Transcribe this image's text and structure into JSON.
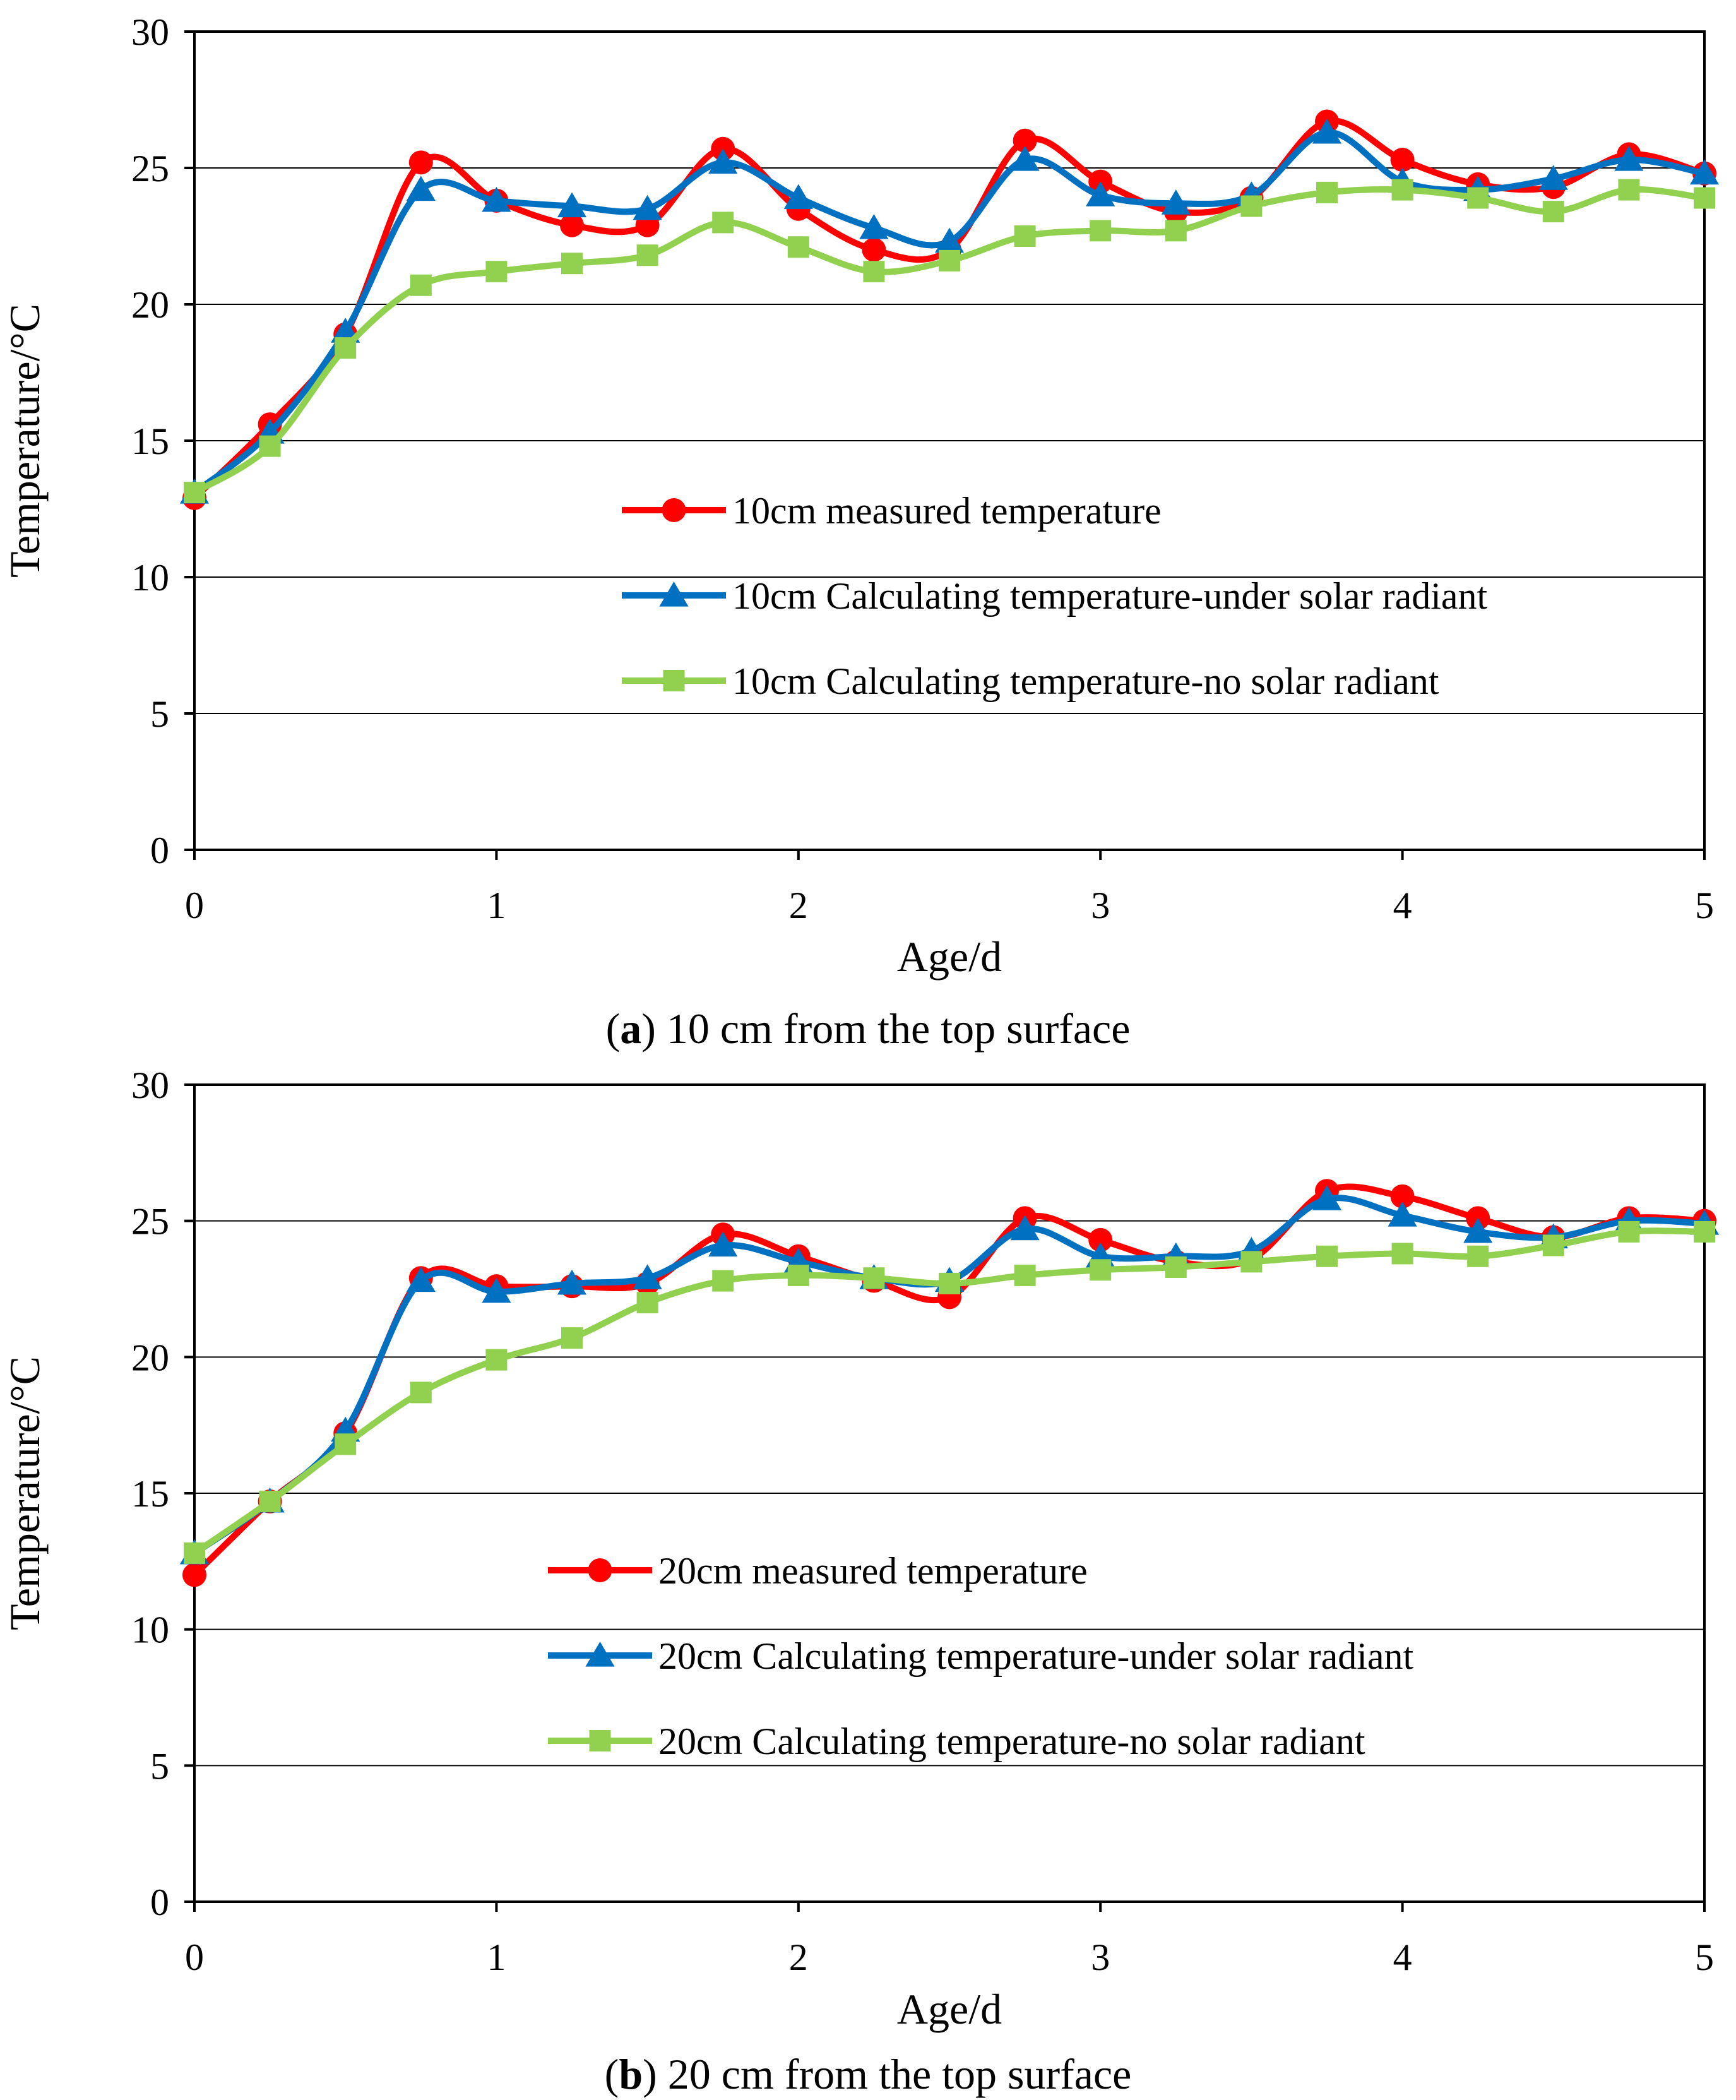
{
  "chart_data": [
    {
      "type": "line",
      "caption": {
        "open": "(",
        "letter": "a",
        "rest": ") 10 cm from the top surface"
      },
      "xlabel": "Age/d",
      "ylabel": "Temperature/°C",
      "xlim": [
        0,
        5
      ],
      "ylim": [
        0,
        30
      ],
      "xticks": [
        0,
        1,
        2,
        3,
        4,
        5
      ],
      "yticks": [
        0,
        5,
        10,
        15,
        20,
        25,
        30
      ],
      "grid": "horizontal",
      "legend_position": "center-right",
      "x": [
        0,
        0.25,
        0.5,
        0.75,
        1,
        1.25,
        1.5,
        1.75,
        2,
        2.25,
        2.5,
        2.75,
        3,
        3.25,
        3.5,
        3.75,
        4,
        4.25,
        4.5,
        4.75,
        5
      ],
      "series": [
        {
          "name": "10cm measured temperature",
          "color": "#ff0000",
          "marker": "circle",
          "values": [
            12.9,
            15.6,
            18.9,
            25.2,
            23.8,
            22.9,
            22.9,
            25.7,
            23.5,
            22.0,
            22.0,
            26.0,
            24.5,
            23.4,
            23.9,
            26.7,
            25.3,
            24.4,
            24.3,
            25.5,
            24.8
          ]
        },
        {
          "name": "10cm Calculating temperature-under solar radiant",
          "color": "#0070c0",
          "marker": "triangle",
          "values": [
            13.1,
            15.3,
            19.0,
            24.2,
            23.8,
            23.6,
            23.5,
            25.2,
            23.9,
            22.8,
            22.3,
            25.3,
            24.0,
            23.7,
            24.0,
            26.3,
            24.5,
            24.2,
            24.6,
            25.3,
            24.8
          ]
        },
        {
          "name": "10cm Calculating temperature-no solar radiant",
          "color": "#92d050",
          "marker": "square",
          "values": [
            13.1,
            14.8,
            18.4,
            20.7,
            21.2,
            21.5,
            21.8,
            23.0,
            22.1,
            21.2,
            21.6,
            22.5,
            22.7,
            22.7,
            23.6,
            24.1,
            24.2,
            23.9,
            23.4,
            24.2,
            23.9
          ]
        }
      ]
    },
    {
      "type": "line",
      "caption": {
        "open": "(",
        "letter": "b",
        "rest": ") 20 cm from the top surface"
      },
      "xlabel": "Age/d",
      "ylabel": "Temperature/°C",
      "xlim": [
        0,
        5
      ],
      "ylim": [
        0,
        30
      ],
      "xticks": [
        0,
        1,
        2,
        3,
        4,
        5
      ],
      "yticks": [
        0,
        5,
        10,
        15,
        20,
        25,
        30
      ],
      "grid": "horizontal",
      "legend_position": "center-right",
      "x": [
        0,
        0.25,
        0.5,
        0.75,
        1,
        1.25,
        1.5,
        1.75,
        2,
        2.25,
        2.5,
        2.75,
        3,
        3.25,
        3.5,
        3.75,
        4,
        4.25,
        4.5,
        4.75,
        5
      ],
      "series": [
        {
          "name": "20cm measured temperature",
          "color": "#ff0000",
          "marker": "circle",
          "values": [
            12.0,
            14.7,
            17.2,
            22.9,
            22.6,
            22.6,
            22.7,
            24.5,
            23.7,
            22.8,
            22.2,
            25.1,
            24.3,
            23.5,
            23.6,
            26.1,
            25.9,
            25.1,
            24.4,
            25.1,
            25.0
          ]
        },
        {
          "name": "20cm Calculating temperature-under solar radiant",
          "color": "#0070c0",
          "marker": "triangle",
          "values": [
            12.8,
            14.7,
            17.3,
            22.8,
            22.4,
            22.7,
            22.9,
            24.1,
            23.5,
            22.9,
            22.8,
            24.7,
            23.7,
            23.7,
            23.9,
            25.8,
            25.2,
            24.6,
            24.4,
            25.0,
            24.9
          ]
        },
        {
          "name": "20cm Calculating temperature-no solar radiant",
          "color": "#92d050",
          "marker": "square",
          "values": [
            12.8,
            14.7,
            16.8,
            18.7,
            19.9,
            20.7,
            22.0,
            22.8,
            23.0,
            22.9,
            22.7,
            23.0,
            23.2,
            23.3,
            23.5,
            23.7,
            23.8,
            23.7,
            24.1,
            24.6,
            24.6
          ]
        }
      ]
    }
  ]
}
